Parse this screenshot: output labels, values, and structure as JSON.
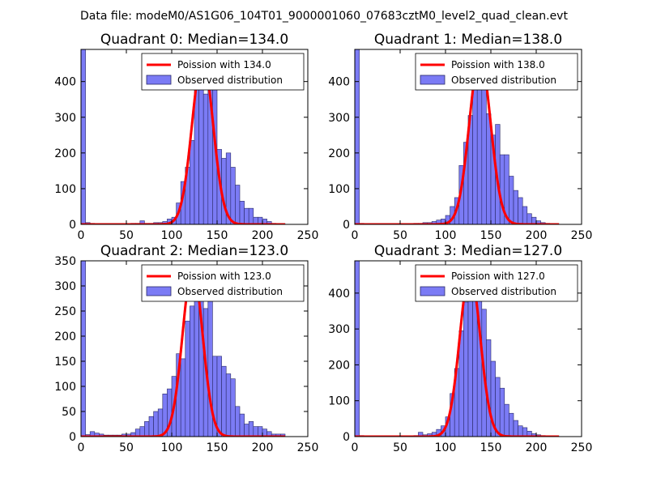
{
  "suptitle": "Data file: modeM0/AS1G06_104T01_9000001060_07683cztM0_level2_quad_clean.evt",
  "colors": {
    "bar_fill": "#7b7bf5",
    "bar_edge": "#2a2a66",
    "curve": "#ff0000"
  },
  "chart_data": [
    {
      "type": "bar",
      "title": "Quadrant 0: Median=134.0",
      "median": 134.0,
      "legend": [
        "Poission with 134.0",
        "Observed distribution"
      ],
      "legend_position": "top-right",
      "xlim": [
        0,
        250
      ],
      "ylim": [
        0,
        490
      ],
      "xticks": [
        0,
        50,
        100,
        150,
        200,
        250
      ],
      "yticks": [
        0,
        100,
        200,
        300,
        400
      ],
      "bin_width": 5,
      "bins": [
        [
          0,
          490
        ],
        [
          5,
          5
        ],
        [
          10,
          3
        ],
        [
          15,
          2
        ],
        [
          20,
          2
        ],
        [
          25,
          2
        ],
        [
          30,
          1
        ],
        [
          35,
          2
        ],
        [
          40,
          2
        ],
        [
          45,
          2
        ],
        [
          50,
          2
        ],
        [
          55,
          3
        ],
        [
          60,
          3
        ],
        [
          65,
          10
        ],
        [
          70,
          3
        ],
        [
          75,
          3
        ],
        [
          80,
          5
        ],
        [
          85,
          5
        ],
        [
          90,
          8
        ],
        [
          95,
          15
        ],
        [
          100,
          20
        ],
        [
          105,
          60
        ],
        [
          110,
          120
        ],
        [
          115,
          160
        ],
        [
          120,
          235
        ],
        [
          125,
          395
        ],
        [
          130,
          430
        ],
        [
          135,
          365
        ],
        [
          140,
          395
        ],
        [
          145,
          425
        ],
        [
          150,
          210
        ],
        [
          155,
          185
        ],
        [
          160,
          200
        ],
        [
          165,
          160
        ],
        [
          170,
          110
        ],
        [
          175,
          65
        ],
        [
          180,
          45
        ],
        [
          185,
          45
        ],
        [
          190,
          20
        ],
        [
          195,
          20
        ],
        [
          200,
          15
        ],
        [
          205,
          8
        ],
        [
          210,
          3
        ],
        [
          215,
          2
        ],
        [
          220,
          2
        ]
      ],
      "poisson_peak": 465,
      "poisson_span": [
        0,
        225
      ]
    },
    {
      "type": "bar",
      "title": "Quadrant 1: Median=138.0",
      "median": 138.0,
      "legend": [
        "Poission with 138.0",
        "Observed distribution"
      ],
      "legend_position": "top-right",
      "xlim": [
        0,
        250
      ],
      "ylim": [
        0,
        490
      ],
      "xticks": [
        0,
        50,
        100,
        150,
        200,
        250
      ],
      "yticks": [
        0,
        100,
        200,
        300,
        400
      ],
      "bin_width": 5,
      "bins": [
        [
          0,
          490
        ],
        [
          5,
          3
        ],
        [
          10,
          2
        ],
        [
          15,
          2
        ],
        [
          20,
          2
        ],
        [
          25,
          2
        ],
        [
          30,
          2
        ],
        [
          35,
          2
        ],
        [
          40,
          2
        ],
        [
          45,
          2
        ],
        [
          50,
          2
        ],
        [
          55,
          2
        ],
        [
          60,
          2
        ],
        [
          65,
          3
        ],
        [
          70,
          3
        ],
        [
          75,
          5
        ],
        [
          80,
          5
        ],
        [
          85,
          8
        ],
        [
          90,
          12
        ],
        [
          95,
          15
        ],
        [
          100,
          25
        ],
        [
          105,
          50
        ],
        [
          110,
          75
        ],
        [
          115,
          165
        ],
        [
          120,
          230
        ],
        [
          125,
          305
        ],
        [
          130,
          390
        ],
        [
          135,
          440
        ],
        [
          140,
          405
        ],
        [
          145,
          310
        ],
        [
          150,
          250
        ],
        [
          155,
          280
        ],
        [
          160,
          195
        ],
        [
          165,
          195
        ],
        [
          170,
          135
        ],
        [
          175,
          95
        ],
        [
          180,
          75
        ],
        [
          185,
          50
        ],
        [
          190,
          30
        ],
        [
          195,
          20
        ],
        [
          200,
          10
        ],
        [
          205,
          5
        ],
        [
          210,
          3
        ],
        [
          215,
          2
        ],
        [
          220,
          2
        ]
      ],
      "poisson_peak": 470,
      "poisson_span": [
        0,
        225
      ]
    },
    {
      "type": "bar",
      "title": "Quadrant 2: Median=123.0",
      "median": 123.0,
      "legend": [
        "Poission with 123.0",
        "Observed distribution"
      ],
      "legend_position": "top-right",
      "xlim": [
        0,
        250
      ],
      "ylim": [
        0,
        350
      ],
      "xticks": [
        0,
        50,
        100,
        150,
        200,
        250
      ],
      "yticks": [
        0,
        50,
        100,
        150,
        200,
        250,
        300,
        350
      ],
      "bin_width": 5,
      "bins": [
        [
          0,
          350
        ],
        [
          5,
          4
        ],
        [
          10,
          10
        ],
        [
          15,
          7
        ],
        [
          20,
          5
        ],
        [
          25,
          3
        ],
        [
          30,
          3
        ],
        [
          35,
          3
        ],
        [
          40,
          3
        ],
        [
          45,
          5
        ],
        [
          50,
          5
        ],
        [
          55,
          8
        ],
        [
          60,
          15
        ],
        [
          65,
          20
        ],
        [
          70,
          30
        ],
        [
          75,
          40
        ],
        [
          80,
          50
        ],
        [
          85,
          55
        ],
        [
          90,
          85
        ],
        [
          95,
          95
        ],
        [
          100,
          120
        ],
        [
          105,
          165
        ],
        [
          110,
          155
        ],
        [
          115,
          230
        ],
        [
          120,
          260
        ],
        [
          125,
          325
        ],
        [
          130,
          305
        ],
        [
          135,
          255
        ],
        [
          140,
          285
        ],
        [
          145,
          160
        ],
        [
          150,
          160
        ],
        [
          155,
          140
        ],
        [
          160,
          125
        ],
        [
          165,
          115
        ],
        [
          170,
          60
        ],
        [
          175,
          45
        ],
        [
          180,
          25
        ],
        [
          185,
          30
        ],
        [
          190,
          20
        ],
        [
          195,
          20
        ],
        [
          200,
          15
        ],
        [
          205,
          10
        ],
        [
          210,
          5
        ],
        [
          215,
          5
        ],
        [
          220,
          5
        ]
      ],
      "poisson_peak": 335,
      "poisson_span": [
        0,
        225
      ]
    },
    {
      "type": "bar",
      "title": "Quadrant 3: Median=127.0",
      "median": 127.0,
      "legend": [
        "Poission with 127.0",
        "Observed distribution"
      ],
      "legend_position": "top-right",
      "xlim": [
        0,
        250
      ],
      "ylim": [
        0,
        490
      ],
      "xticks": [
        0,
        50,
        100,
        150,
        200,
        250
      ],
      "yticks": [
        0,
        100,
        200,
        300,
        400
      ],
      "bin_width": 5,
      "bins": [
        [
          0,
          490
        ],
        [
          5,
          3
        ],
        [
          10,
          2
        ],
        [
          15,
          2
        ],
        [
          20,
          2
        ],
        [
          25,
          2
        ],
        [
          30,
          2
        ],
        [
          35,
          2
        ],
        [
          40,
          2
        ],
        [
          45,
          2
        ],
        [
          50,
          2
        ],
        [
          55,
          2
        ],
        [
          60,
          2
        ],
        [
          65,
          3
        ],
        [
          70,
          12
        ],
        [
          75,
          5
        ],
        [
          80,
          8
        ],
        [
          85,
          12
        ],
        [
          90,
          20
        ],
        [
          95,
          30
        ],
        [
          100,
          55
        ],
        [
          105,
          120
        ],
        [
          110,
          190
        ],
        [
          115,
          295
        ],
        [
          120,
          375
        ],
        [
          125,
          430
        ],
        [
          130,
          450
        ],
        [
          135,
          380
        ],
        [
          140,
          355
        ],
        [
          145,
          270
        ],
        [
          150,
          210
        ],
        [
          155,
          165
        ],
        [
          160,
          135
        ],
        [
          165,
          90
        ],
        [
          170,
          65
        ],
        [
          175,
          45
        ],
        [
          180,
          30
        ],
        [
          185,
          25
        ],
        [
          190,
          15
        ],
        [
          195,
          8
        ],
        [
          200,
          5
        ],
        [
          205,
          3
        ],
        [
          210,
          2
        ],
        [
          215,
          2
        ],
        [
          220,
          2
        ]
      ],
      "poisson_peak": 460,
      "poisson_span": [
        0,
        225
      ]
    }
  ]
}
